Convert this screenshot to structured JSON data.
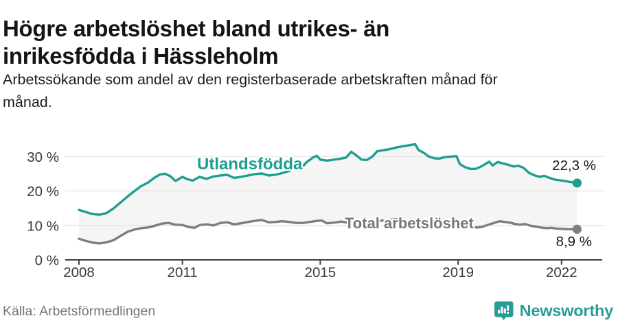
{
  "header": {
    "title_lines": [
      "Högre arbetslöshet bland utrikes- än",
      "inrikesfödda i Hässleholm"
    ],
    "subtitle_lines": [
      "Arbetssökande som andel av den registerbaserade arbetskraften månad för",
      "månad."
    ]
  },
  "footer": {
    "source": "Källa: Arbetsförmedlingen",
    "brand_name": "Newsworthy",
    "brand_icon": "bar-chart-speech-bubble"
  },
  "colors": {
    "accent_teal": "#1d9f90",
    "line_gray": "#7d7d82",
    "area_fill": "#f5f5f5",
    "grid": "#e2e2e2",
    "axis": "#3f3f3f",
    "tick_text": "#3a3a3a",
    "brand_teal": "#2b9c94"
  },
  "chart_data": {
    "type": "line",
    "title": "Högre arbetslöshet bland utrikes- än inrikesfödda i Hässleholm",
    "xlabel": "",
    "ylabel": "",
    "grid": true,
    "legend_position": "inline-labels",
    "x_ticks": [
      "2008",
      "2011",
      "2015",
      "2019",
      "2022"
    ],
    "x_tick_years": [
      2008,
      2011,
      2015,
      2019,
      2022
    ],
    "y_ticks": [
      0,
      10,
      20,
      30
    ],
    "y_tick_suffix": " %",
    "xlim": [
      2007.6,
      2023.15
    ],
    "ylim": [
      0,
      36
    ],
    "series": [
      {
        "name": "Utlandsfödda",
        "color": "#1d9f90",
        "end_value": 22.3,
        "end_value_label": "22,3 %",
        "points": [
          [
            2008.0,
            14.5
          ],
          [
            2008.2,
            13.9
          ],
          [
            2008.4,
            13.3
          ],
          [
            2008.6,
            13.1
          ],
          [
            2008.8,
            13.6
          ],
          [
            2009.0,
            14.9
          ],
          [
            2009.2,
            16.6
          ],
          [
            2009.4,
            18.3
          ],
          [
            2009.6,
            19.9
          ],
          [
            2009.8,
            21.4
          ],
          [
            2010.0,
            22.4
          ],
          [
            2010.2,
            23.9
          ],
          [
            2010.35,
            24.8
          ],
          [
            2010.5,
            25.0
          ],
          [
            2010.65,
            24.3
          ],
          [
            2010.8,
            22.9
          ],
          [
            2011.0,
            24.1
          ],
          [
            2011.15,
            23.4
          ],
          [
            2011.3,
            23.0
          ],
          [
            2011.5,
            24.1
          ],
          [
            2011.7,
            23.5
          ],
          [
            2011.9,
            24.2
          ],
          [
            2012.1,
            24.5
          ],
          [
            2012.3,
            24.7
          ],
          [
            2012.5,
            23.8
          ],
          [
            2012.7,
            24.1
          ],
          [
            2012.9,
            24.5
          ],
          [
            2013.1,
            24.9
          ],
          [
            2013.3,
            25.1
          ],
          [
            2013.5,
            24.5
          ],
          [
            2013.7,
            24.7
          ],
          [
            2013.9,
            25.2
          ],
          [
            2014.1,
            25.8
          ],
          [
            2014.25,
            26.9
          ],
          [
            2014.4,
            26.1
          ],
          [
            2014.6,
            28.3
          ],
          [
            2014.8,
            29.8
          ],
          [
            2014.9,
            30.2
          ],
          [
            2015.0,
            29.1
          ],
          [
            2015.2,
            28.8
          ],
          [
            2015.4,
            29.1
          ],
          [
            2015.6,
            29.4
          ],
          [
            2015.75,
            29.7
          ],
          [
            2015.9,
            31.4
          ],
          [
            2016.05,
            30.3
          ],
          [
            2016.2,
            29.1
          ],
          [
            2016.35,
            29.0
          ],
          [
            2016.5,
            29.9
          ],
          [
            2016.65,
            31.5
          ],
          [
            2016.8,
            31.8
          ],
          [
            2017.0,
            32.1
          ],
          [
            2017.2,
            32.6
          ],
          [
            2017.4,
            33.0
          ],
          [
            2017.6,
            33.3
          ],
          [
            2017.75,
            33.6
          ],
          [
            2017.85,
            31.9
          ],
          [
            2018.0,
            31.1
          ],
          [
            2018.15,
            30.0
          ],
          [
            2018.3,
            29.5
          ],
          [
            2018.45,
            29.4
          ],
          [
            2018.6,
            29.8
          ],
          [
            2018.8,
            30.0
          ],
          [
            2018.95,
            30.1
          ],
          [
            2019.05,
            27.8
          ],
          [
            2019.2,
            26.9
          ],
          [
            2019.35,
            26.4
          ],
          [
            2019.5,
            26.4
          ],
          [
            2019.65,
            27.0
          ],
          [
            2019.8,
            27.9
          ],
          [
            2019.9,
            28.5
          ],
          [
            2020.0,
            27.4
          ],
          [
            2020.15,
            28.4
          ],
          [
            2020.3,
            28.0
          ],
          [
            2020.45,
            27.6
          ],
          [
            2020.6,
            27.1
          ],
          [
            2020.75,
            27.3
          ],
          [
            2020.9,
            26.7
          ],
          [
            2021.05,
            25.3
          ],
          [
            2021.2,
            24.6
          ],
          [
            2021.35,
            24.1
          ],
          [
            2021.5,
            24.4
          ],
          [
            2021.65,
            23.8
          ],
          [
            2021.8,
            23.3
          ],
          [
            2021.95,
            23.1
          ],
          [
            2022.1,
            22.9
          ],
          [
            2022.25,
            22.6
          ],
          [
            2022.45,
            22.3
          ]
        ]
      },
      {
        "name": "Total arbetslöshet",
        "color": "#7d7d82",
        "end_value": 8.9,
        "end_value_label": "8,9 %",
        "points": [
          [
            2008.0,
            6.1
          ],
          [
            2008.2,
            5.5
          ],
          [
            2008.4,
            5.0
          ],
          [
            2008.6,
            4.8
          ],
          [
            2008.8,
            5.1
          ],
          [
            2009.0,
            5.7
          ],
          [
            2009.2,
            6.9
          ],
          [
            2009.4,
            8.1
          ],
          [
            2009.6,
            8.8
          ],
          [
            2009.8,
            9.2
          ],
          [
            2010.0,
            9.4
          ],
          [
            2010.2,
            9.9
          ],
          [
            2010.4,
            10.5
          ],
          [
            2010.6,
            10.7
          ],
          [
            2010.8,
            10.2
          ],
          [
            2011.0,
            10.1
          ],
          [
            2011.2,
            9.5
          ],
          [
            2011.35,
            9.3
          ],
          [
            2011.5,
            10.1
          ],
          [
            2011.7,
            10.3
          ],
          [
            2011.9,
            10.0
          ],
          [
            2012.1,
            10.7
          ],
          [
            2012.3,
            10.9
          ],
          [
            2012.5,
            10.3
          ],
          [
            2012.7,
            10.6
          ],
          [
            2012.9,
            11.0
          ],
          [
            2013.1,
            11.3
          ],
          [
            2013.3,
            11.6
          ],
          [
            2013.5,
            10.9
          ],
          [
            2013.7,
            11.0
          ],
          [
            2013.9,
            11.2
          ],
          [
            2014.1,
            11.0
          ],
          [
            2014.3,
            10.7
          ],
          [
            2014.5,
            10.7
          ],
          [
            2014.7,
            11.0
          ],
          [
            2014.9,
            11.3
          ],
          [
            2015.05,
            11.4
          ],
          [
            2015.2,
            10.6
          ],
          [
            2015.4,
            10.8
          ],
          [
            2015.6,
            11.1
          ],
          [
            2015.8,
            10.8
          ],
          [
            2016.0,
            10.7
          ],
          [
            2016.2,
            10.9
          ],
          [
            2016.4,
            11.1
          ],
          [
            2016.6,
            11.2
          ],
          [
            2016.8,
            11.4
          ],
          [
            2017.0,
            11.6
          ],
          [
            2017.2,
            11.8
          ],
          [
            2017.4,
            11.4
          ],
          [
            2017.6,
            11.1
          ],
          [
            2017.8,
            11.2
          ],
          [
            2018.0,
            11.4
          ],
          [
            2018.2,
            11.0
          ],
          [
            2018.4,
            11.1
          ],
          [
            2018.6,
            11.3
          ],
          [
            2018.8,
            11.5
          ],
          [
            2019.0,
            10.7
          ],
          [
            2019.2,
            10.1
          ],
          [
            2019.4,
            9.6
          ],
          [
            2019.55,
            9.4
          ],
          [
            2019.7,
            9.6
          ],
          [
            2019.85,
            10.1
          ],
          [
            2020.0,
            10.6
          ],
          [
            2020.2,
            11.2
          ],
          [
            2020.35,
            11.0
          ],
          [
            2020.5,
            10.8
          ],
          [
            2020.65,
            10.4
          ],
          [
            2020.8,
            10.2
          ],
          [
            2020.95,
            10.4
          ],
          [
            2021.1,
            9.9
          ],
          [
            2021.25,
            9.7
          ],
          [
            2021.4,
            9.4
          ],
          [
            2021.55,
            9.2
          ],
          [
            2021.7,
            9.3
          ],
          [
            2021.85,
            9.1
          ],
          [
            2022.0,
            9.0
          ],
          [
            2022.2,
            8.9
          ],
          [
            2022.45,
            8.9
          ]
        ]
      }
    ]
  }
}
